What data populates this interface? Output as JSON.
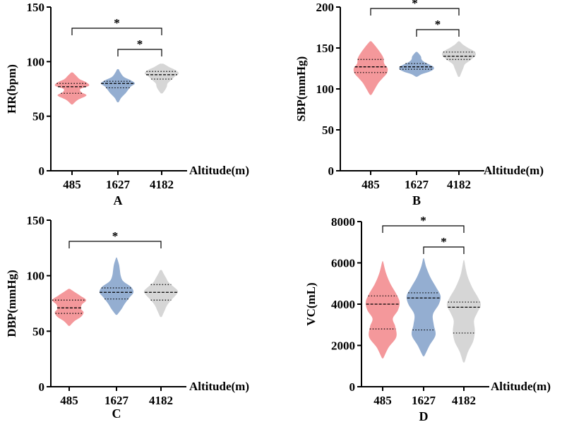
{
  "colors": {
    "485": "#F4989B",
    "1627": "#94AED1",
    "4182": "#D6D6D6",
    "axis": "#000000"
  },
  "chart_data": [
    {
      "type": "violin",
      "panel_label": "A",
      "ylabel": "HR(bpm)",
      "xlabel": "Altitude(m)",
      "categories": [
        "485",
        "1627",
        "4182"
      ],
      "ylim": [
        0,
        150
      ],
      "yticks": [
        0,
        50,
        100,
        150
      ],
      "tick_labels": [
        "0",
        "50",
        "100",
        "150"
      ],
      "series": [
        {
          "name": "485",
          "min": 61,
          "max": 90,
          "q1": 71,
          "median": 77,
          "q3": 80,
          "density": [
            [
              61,
              0.05
            ],
            [
              65,
              0.35
            ],
            [
              69,
              0.85
            ],
            [
              72,
              0.55
            ],
            [
              75,
              0.5
            ],
            [
              78,
              1.0
            ],
            [
              81,
              0.85
            ],
            [
              84,
              0.45
            ],
            [
              87,
              0.25
            ],
            [
              90,
              0.05
            ]
          ]
        },
        {
          "name": "1627",
          "min": 63,
          "max": 93,
          "q1": 76,
          "median": 80,
          "q3": 82,
          "density": [
            [
              63,
              0.05
            ],
            [
              67,
              0.2
            ],
            [
              71,
              0.45
            ],
            [
              74,
              0.6
            ],
            [
              77,
              0.75
            ],
            [
              80,
              1.0
            ],
            [
              83,
              0.75
            ],
            [
              86,
              0.35
            ],
            [
              90,
              0.15
            ],
            [
              93,
              0.05
            ]
          ]
        },
        {
          "name": "4182",
          "min": 71,
          "max": 98,
          "q1": 84,
          "median": 88,
          "q3": 91,
          "density": [
            [
              71,
              0.05
            ],
            [
              74,
              0.2
            ],
            [
              77,
              0.3
            ],
            [
              80,
              0.35
            ],
            [
              83,
              0.55
            ],
            [
              86,
              0.75
            ],
            [
              89,
              1.0
            ],
            [
              92,
              0.85
            ],
            [
              95,
              0.45
            ],
            [
              98,
              0.1
            ]
          ]
        }
      ],
      "significance": [
        {
          "from": "485",
          "to": "4182",
          "label": "*",
          "y_level": 1
        },
        {
          "from": "1627",
          "to": "4182",
          "label": "*",
          "y_level": 0
        }
      ]
    },
    {
      "type": "violin",
      "panel_label": "B",
      "ylabel": "SBP(mmHg)",
      "xlabel": "Altitude(m)",
      "categories": [
        "485",
        "1627",
        "4182"
      ],
      "ylim": [
        0,
        200
      ],
      "yticks": [
        0,
        50,
        100,
        150,
        200
      ],
      "tick_labels": [
        "0",
        "50",
        "100",
        "150",
        "200"
      ],
      "series": [
        {
          "name": "485",
          "min": 93,
          "max": 158,
          "q1": 120,
          "median": 127,
          "q3": 136,
          "density": [
            [
              93,
              0.05
            ],
            [
              100,
              0.25
            ],
            [
              107,
              0.45
            ],
            [
              113,
              0.7
            ],
            [
              119,
              0.95
            ],
            [
              125,
              1.0
            ],
            [
              131,
              0.8
            ],
            [
              138,
              0.75
            ],
            [
              145,
              0.55
            ],
            [
              152,
              0.3
            ],
            [
              158,
              0.05
            ]
          ]
        },
        {
          "name": "1627",
          "min": 115,
          "max": 145,
          "q1": 124,
          "median": 127,
          "q3": 131,
          "density": [
            [
              115,
              0.05
            ],
            [
              118,
              0.3
            ],
            [
              121,
              0.75
            ],
            [
              124,
              1.0
            ],
            [
              127,
              1.0
            ],
            [
              130,
              0.75
            ],
            [
              133,
              0.45
            ],
            [
              136,
              0.3
            ],
            [
              140,
              0.25
            ],
            [
              145,
              0.05
            ]
          ]
        },
        {
          "name": "4182",
          "min": 115,
          "max": 158,
          "q1": 136,
          "median": 140,
          "q3": 145,
          "density": [
            [
              115,
              0.05
            ],
            [
              120,
              0.15
            ],
            [
              125,
              0.25
            ],
            [
              130,
              0.35
            ],
            [
              134,
              0.6
            ],
            [
              138,
              0.85
            ],
            [
              142,
              1.0
            ],
            [
              146,
              0.9
            ],
            [
              150,
              0.55
            ],
            [
              154,
              0.25
            ],
            [
              158,
              0.05
            ]
          ]
        }
      ],
      "significance": [
        {
          "from": "485",
          "to": "4182",
          "label": "*",
          "y_level": 1
        },
        {
          "from": "1627",
          "to": "4182",
          "label": "*",
          "y_level": 0
        }
      ]
    },
    {
      "type": "violin",
      "panel_label": "C",
      "ylabel": "DBP(mmHg)",
      "xlabel": "Altitude(m)",
      "categories": [
        "485",
        "1627",
        "4182"
      ],
      "ylim": [
        0,
        150
      ],
      "yticks": [
        0,
        50,
        100,
        150
      ],
      "tick_labels": [
        "0",
        "50",
        "100",
        "150"
      ],
      "series": [
        {
          "name": "485",
          "min": 55,
          "max": 88,
          "q1": 66,
          "median": 71,
          "q3": 78,
          "density": [
            [
              55,
              0.05
            ],
            [
              59,
              0.3
            ],
            [
              63,
              0.7
            ],
            [
              67,
              0.85
            ],
            [
              70,
              0.7
            ],
            [
              74,
              0.75
            ],
            [
              78,
              1.0
            ],
            [
              82,
              0.65
            ],
            [
              85,
              0.35
            ],
            [
              88,
              0.05
            ]
          ]
        },
        {
          "name": "1627",
          "min": 65,
          "max": 116,
          "q1": 79,
          "median": 85,
          "q3": 89,
          "density": [
            [
              65,
              0.05
            ],
            [
              70,
              0.3
            ],
            [
              75,
              0.5
            ],
            [
              80,
              0.75
            ],
            [
              85,
              1.0
            ],
            [
              90,
              0.85
            ],
            [
              95,
              0.4
            ],
            [
              100,
              0.25
            ],
            [
              105,
              0.2
            ],
            [
              110,
              0.15
            ],
            [
              116,
              0.03
            ]
          ]
        },
        {
          "name": "4182",
          "min": 63,
          "max": 105,
          "q1": 78,
          "median": 85,
          "q3": 92,
          "density": [
            [
              63,
              0.05
            ],
            [
              68,
              0.2
            ],
            [
              73,
              0.35
            ],
            [
              78,
              0.6
            ],
            [
              82,
              0.85
            ],
            [
              86,
              1.0
            ],
            [
              90,
              0.75
            ],
            [
              94,
              0.45
            ],
            [
              98,
              0.3
            ],
            [
              102,
              0.15
            ],
            [
              105,
              0.05
            ]
          ]
        }
      ],
      "significance": [
        {
          "from": "485",
          "to": "4182",
          "label": "*",
          "y_level": 0
        }
      ]
    },
    {
      "type": "violin",
      "panel_label": "D",
      "ylabel": "VC(mL)",
      "xlabel": "Altitude(m)",
      "categories": [
        "485",
        "1627",
        "4182"
      ],
      "ylim": [
        0,
        8000
      ],
      "yticks": [
        0,
        2000,
        4000,
        6000,
        8000
      ],
      "tick_labels": [
        "0",
        "2000",
        "4000",
        "6000",
        "8000"
      ],
      "series": [
        {
          "name": "485",
          "min": 1400,
          "max": 6050,
          "q1": 2800,
          "median": 4000,
          "q3": 4400,
          "density": [
            [
              1400,
              0.05
            ],
            [
              1900,
              0.35
            ],
            [
              2400,
              0.8
            ],
            [
              2900,
              0.75
            ],
            [
              3300,
              0.6
            ],
            [
              3700,
              0.9
            ],
            [
              4100,
              1.0
            ],
            [
              4500,
              0.8
            ],
            [
              5000,
              0.45
            ],
            [
              5500,
              0.2
            ],
            [
              6050,
              0.03
            ]
          ]
        },
        {
          "name": "1627",
          "min": 1500,
          "max": 6200,
          "q1": 2750,
          "median": 4300,
          "q3": 4550,
          "density": [
            [
              1500,
              0.05
            ],
            [
              2000,
              0.35
            ],
            [
              2500,
              0.7
            ],
            [
              3000,
              0.6
            ],
            [
              3500,
              0.55
            ],
            [
              4000,
              0.9
            ],
            [
              4400,
              1.0
            ],
            [
              4800,
              0.75
            ],
            [
              5300,
              0.4
            ],
            [
              5800,
              0.15
            ],
            [
              6200,
              0.03
            ]
          ]
        },
        {
          "name": "4182",
          "min": 1200,
          "max": 6100,
          "q1": 2600,
          "median": 3850,
          "q3": 4100,
          "density": [
            [
              1200,
              0.05
            ],
            [
              1700,
              0.25
            ],
            [
              2200,
              0.55
            ],
            [
              2700,
              0.65
            ],
            [
              3200,
              0.6
            ],
            [
              3600,
              0.8
            ],
            [
              3950,
              1.0
            ],
            [
              4300,
              0.85
            ],
            [
              4800,
              0.5
            ],
            [
              5400,
              0.2
            ],
            [
              6100,
              0.03
            ]
          ]
        }
      ],
      "significance": [
        {
          "from": "485",
          "to": "4182",
          "label": "*",
          "y_level": 1
        },
        {
          "from": "1627",
          "to": "4182",
          "label": "*",
          "y_level": 0
        }
      ]
    }
  ]
}
